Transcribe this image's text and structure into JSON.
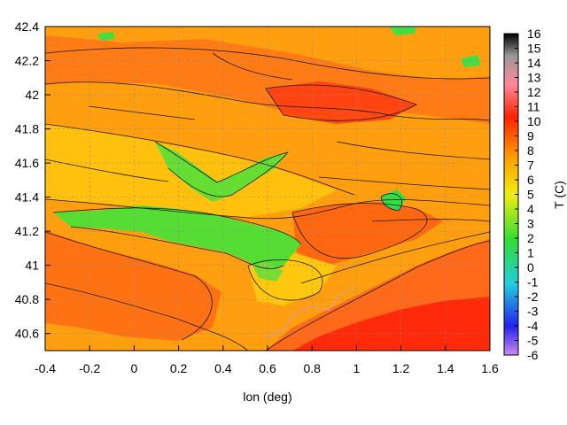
{
  "chart_data": {
    "type": "heatmap",
    "title": "",
    "xlabel": "lon (deg)",
    "ylabel": "",
    "colorbar_label": "T (C)",
    "xlim": [
      -0.4,
      1.6
    ],
    "ylim": [
      40.5,
      42.4
    ],
    "x_ticks": [
      "-0.4",
      "-0.2",
      "0",
      "0.2",
      "0.4",
      "0.6",
      "0.8",
      "1",
      "1.2",
      "1.4",
      "1.6"
    ],
    "y_ticks": [
      "40.6",
      "40.8",
      "41",
      "41.2",
      "41.4",
      "41.6",
      "41.8",
      "42",
      "42.2",
      "42.4"
    ],
    "colorbar_ticks": [
      "-6",
      "-5",
      "-4",
      "-3",
      "-2",
      "-1",
      "0",
      "1",
      "2",
      "3",
      "4",
      "5",
      "6",
      "7",
      "8",
      "9",
      "10",
      "11",
      "12",
      "13",
      "14",
      "15",
      "16"
    ],
    "colorbar_range": [
      -6,
      16
    ],
    "grid": true,
    "contours": true,
    "colors": {
      "cold_pink": "#cc88ee",
      "blue": "#2222ee",
      "cyan": "#22ccdd",
      "green": "#33dd33",
      "yellow": "#eeee11",
      "orange": "#ff9900",
      "red": "#ff2200",
      "pink": "#ff8899",
      "grey": "#999999",
      "black": "#000000"
    }
  }
}
